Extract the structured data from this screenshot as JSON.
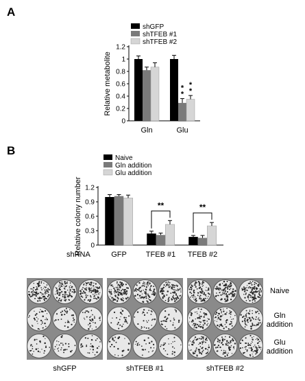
{
  "panels": [
    {
      "letter": "A"
    },
    {
      "letter": "B"
    }
  ],
  "colors": {
    "series1": "#000000",
    "series2": "#7a7a7a",
    "series3": "#d6d6d6"
  },
  "chart_data": [
    {
      "type": "bar",
      "title": "",
      "xlabel": "",
      "ylabel": "Relative metabolite",
      "ylim": [
        0,
        1.2
      ],
      "yticks": [
        "0",
        "0.2",
        "0.4",
        "0.6",
        "0.8",
        "1",
        "1.2"
      ],
      "legend_position": "top-left",
      "categories": [
        "Gln",
        "Glu"
      ],
      "series": [
        {
          "name": "shGFP",
          "values": [
            1.0,
            1.0
          ],
          "errors": [
            0.05,
            0.06
          ]
        },
        {
          "name": "shTFEB #1",
          "values": [
            0.82,
            0.29
          ],
          "errors": [
            0.05,
            0.07
          ]
        },
        {
          "name": "shTFEB #2",
          "values": [
            0.87,
            0.35
          ],
          "errors": [
            0.07,
            0.06
          ]
        }
      ],
      "annotations": [
        {
          "text": "**",
          "category": "Glu",
          "series": "shTFEB #1"
        },
        {
          "text": "**",
          "category": "Glu",
          "series": "shTFEB #2"
        }
      ]
    },
    {
      "type": "bar",
      "title": "",
      "xlabel": "shRNA",
      "ylabel": "Relative colony number",
      "ylim": [
        0,
        1.2
      ],
      "yticks": [
        "0",
        "0.3",
        "0.6",
        "0.9",
        "1.2"
      ],
      "legend_position": "top-left",
      "categories": [
        "GFP",
        "TFEB #1",
        "TFEB #2"
      ],
      "series": [
        {
          "name": "Naive",
          "values": [
            1.0,
            0.24,
            0.17
          ],
          "errors": [
            0.05,
            0.05,
            0.03
          ]
        },
        {
          "name": "Gln addition",
          "values": [
            1.02,
            0.21,
            0.15
          ],
          "errors": [
            0.03,
            0.04,
            0.05
          ]
        },
        {
          "name": "Glu addition",
          "values": [
            0.98,
            0.43,
            0.4
          ],
          "errors": [
            0.06,
            0.08,
            0.07
          ]
        }
      ],
      "annotations": [
        {
          "text": "**",
          "category": "TFEB #1"
        },
        {
          "text": "**",
          "category": "TFEB #2"
        }
      ]
    }
  ],
  "plates": {
    "columns": [
      "shGFP",
      "shTFEB #1",
      "shTFEB #2"
    ],
    "rows": [
      {
        "line1": "Naive",
        "line2": ""
      },
      {
        "line1": "Gln",
        "line2": "addition"
      },
      {
        "line1": "Glu",
        "line2": "addition"
      }
    ],
    "density": [
      [
        0.9,
        0.9,
        0.9
      ],
      [
        0.3,
        0.25,
        0.55
      ],
      [
        0.25,
        0.2,
        0.6
      ]
    ]
  }
}
